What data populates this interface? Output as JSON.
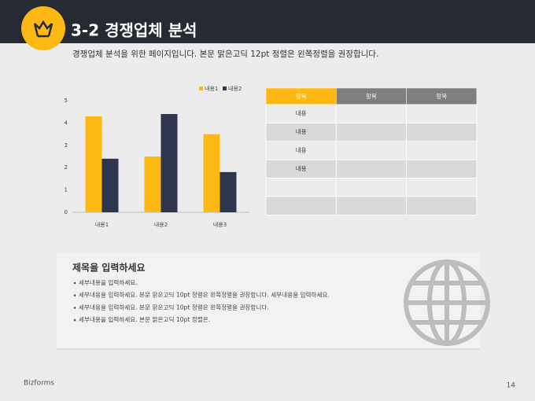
{
  "header": {
    "title": "3-2 경쟁업체 분석",
    "subtitle": "경쟁업체 분석을 위한 페이지입니다. 본문 맑은고딕 12pt 정렬은 왼쪽정렬을 권장합니다."
  },
  "chart_data": {
    "type": "bar",
    "categories": [
      "내용1",
      "내용2",
      "내용3"
    ],
    "series": [
      {
        "name": "내용1",
        "color": "#fdb813",
        "values": [
          4.3,
          2.5,
          3.5
        ]
      },
      {
        "name": "내용2",
        "color": "#2e3650",
        "values": [
          2.4,
          4.4,
          1.8
        ]
      }
    ],
    "ylim": [
      0,
      5
    ],
    "yticks": [
      0,
      1,
      2,
      3,
      4,
      5
    ],
    "grid": false,
    "legend": "top-right"
  },
  "table": {
    "headers": [
      "항목",
      "항목",
      "항목"
    ],
    "rows": [
      "내용",
      "내용",
      "내용",
      "내용"
    ]
  },
  "textbox": {
    "title": "제목을 입력하세요",
    "bullets": [
      "세부내용을 입력하세요.",
      "세부내용을 입력하세요. 본문 맑은고딕 10pt 정렬은 왼쪽정렬을 권장합니다. 세부내용을 입력하세요.",
      "세부내용을 입력하세요. 본문 맑은고딕 10pt 정렬은 왼쪽정렬을 권장합니다.",
      "세부내용을 입력하세요. 본문 맑은고딕 10pt 정렬은."
    ]
  },
  "footer": {
    "brand": "Bizforms",
    "page": "14"
  }
}
